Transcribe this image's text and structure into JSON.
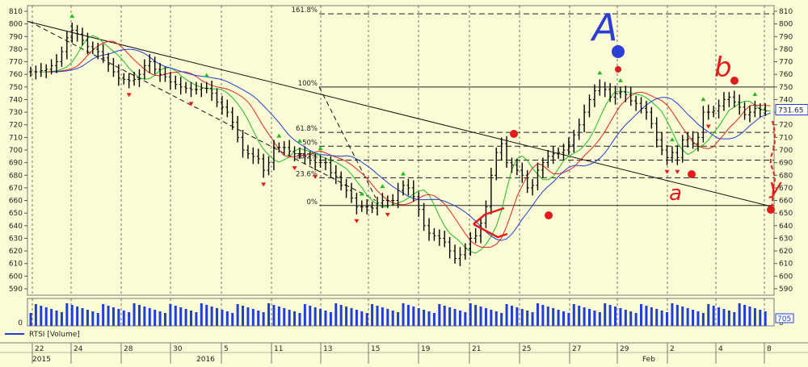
{
  "chart_data": {
    "type": "line",
    "instrument": "RTSI",
    "volume_legend": "RTSI [Volume]",
    "last_price_label": "731.65",
    "volume_value_label": "705",
    "y_axis": {
      "min": 590,
      "max": 810,
      "step": 10,
      "ticks": [
        "810",
        "800",
        "790",
        "780",
        "770",
        "760",
        "750",
        "740",
        "730",
        "720",
        "710",
        "700",
        "690",
        "680",
        "670",
        "660",
        "650",
        "640",
        "630",
        "620",
        "610",
        "600",
        "590"
      ]
    },
    "volume_axis_zero": "0",
    "x_axis": {
      "top_labels": [
        "22",
        "24",
        "28",
        "30",
        "5",
        "11",
        "13",
        "15",
        "19",
        "21",
        "25",
        "27",
        "29",
        "2",
        "4",
        "8"
      ],
      "bottom_labels": [
        "2015",
        "2016",
        "Feb"
      ]
    },
    "fibonacci": [
      {
        "label": "161.8%",
        "value": 808
      },
      {
        "label": "100%",
        "value": 750
      },
      {
        "label": "61.8%",
        "value": 714
      },
      {
        "label": "50%",
        "value": 703
      },
      {
        "label": "38.2%",
        "value": 692
      },
      {
        "label": "23.6%",
        "value": 678
      },
      {
        "label": "0%",
        "value": 656
      }
    ],
    "trendlines": [
      {
        "from": [
          0,
          802
        ],
        "to": [
          60,
          655
        ]
      },
      {
        "from": [
          0,
          802
        ],
        "to": [
          47,
          660
        ]
      }
    ],
    "annotations": [
      "A",
      "B",
      "a",
      "Y"
    ],
    "colors": {
      "background": "#fbfbd6",
      "blue_ma": "#1f3fd6",
      "red_ma": "#e0261c",
      "green_ma": "#1fbd1f",
      "volume": "#1f3fd6",
      "marks_red": "#e01c1c",
      "annotation_blue": "#2b3fd6"
    },
    "price_close": [
      762,
      762,
      763,
      764,
      767,
      770,
      778,
      789,
      795,
      792,
      787,
      782,
      780,
      778,
      773,
      768,
      762,
      757,
      756,
      755,
      756,
      760,
      767,
      770,
      764,
      760,
      758,
      754,
      752,
      750,
      749,
      748,
      748,
      749,
      749,
      745,
      738,
      734,
      730,
      722,
      710,
      700,
      697,
      695,
      693,
      684,
      690,
      702,
      702,
      702,
      699,
      697,
      697,
      695,
      692,
      690,
      690,
      690,
      682,
      679,
      672,
      668,
      662,
      655,
      655,
      655,
      654,
      658,
      660,
      660,
      660,
      668,
      672,
      670,
      663,
      653,
      640,
      634,
      632,
      630,
      627,
      620,
      614,
      617,
      622,
      630,
      632,
      642,
      655,
      680,
      698,
      705,
      690,
      688,
      684,
      680,
      670,
      672,
      684,
      690,
      695,
      697,
      698,
      700,
      704,
      712,
      720,
      730,
      740,
      747,
      750,
      748,
      742,
      745,
      746,
      744,
      739,
      737,
      733,
      730,
      721,
      708,
      700,
      694,
      698,
      694,
      708,
      709,
      705,
      710,
      730,
      730,
      731,
      735,
      740,
      742,
      738,
      734,
      728,
      730,
      733,
      732,
      731
    ]
  }
}
